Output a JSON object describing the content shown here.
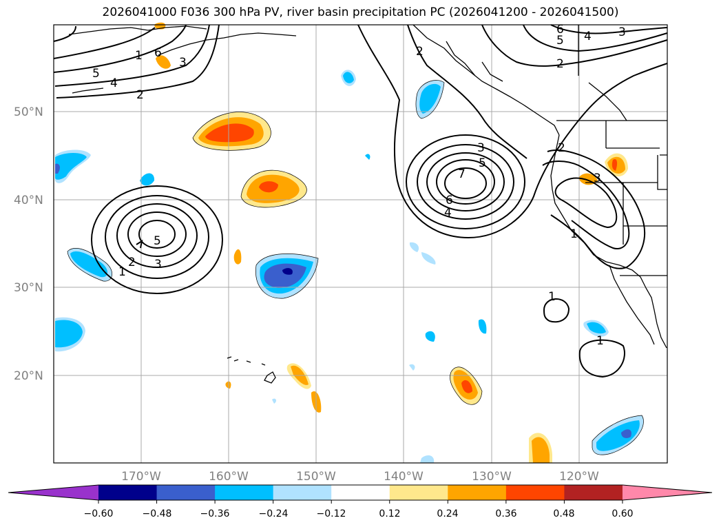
{
  "title": "2026041000 F036 300 hPa PV, river basin precipitation PC (2026041200 - 2026041500)",
  "map": {
    "lat_labels": [
      "50°N",
      "40°N",
      "30°N",
      "20°N"
    ],
    "lon_labels": [
      "170°W",
      "160°W",
      "150°W",
      "140°W",
      "130°W",
      "120°W"
    ],
    "pv_contour_labels": [
      "1",
      "2",
      "3",
      "4",
      "5",
      "6",
      "7"
    ]
  },
  "colorbar": {
    "ticks": [
      "−0.60",
      "−0.48",
      "−0.36",
      "−0.24",
      "−0.12",
      "0.12",
      "0.24",
      "0.36",
      "0.48",
      "0.60"
    ],
    "colors": [
      "#9932cc",
      "#00008b",
      "#3a5fcd",
      "#00bfff",
      "#b0e2ff",
      "#ffffff",
      "#ffe88c",
      "#ffa500",
      "#ff4500",
      "#b22222",
      "#ff88aa"
    ]
  }
}
